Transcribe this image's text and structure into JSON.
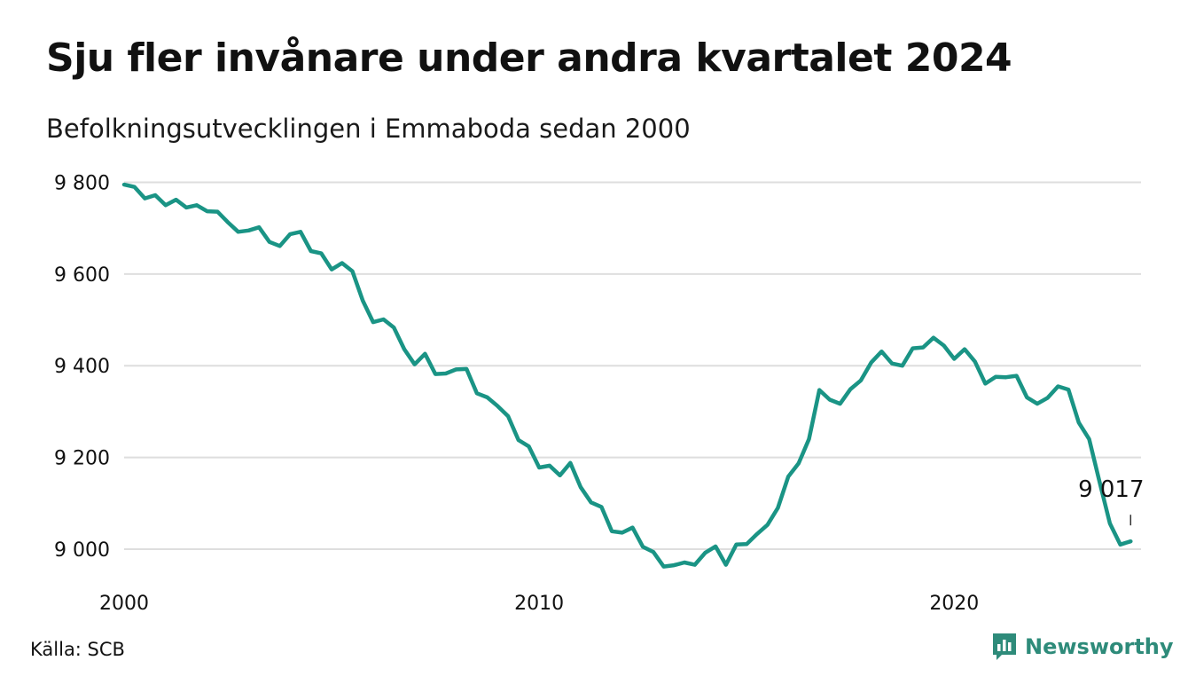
{
  "header": {
    "title": "Sju fler invånare under andra kvartalet 2024",
    "subtitle": "Befolkningsutvecklingen i Emmaboda sedan 2000"
  },
  "footer": {
    "source": "Källa: SCB",
    "brand": "Newsworthy"
  },
  "colors": {
    "line": "#1a9485",
    "grid": "#dedede",
    "brand": "#2e8b7a"
  },
  "chart_data": {
    "type": "line",
    "title": "Sju fler invånare under andra kvartalet 2024",
    "subtitle": "Befolkningsutvecklingen i Emmaboda sedan 2000",
    "xlabel": "",
    "ylabel": "",
    "xlim": [
      2000,
      2024.5
    ],
    "ylim": [
      8940,
      9830
    ],
    "x_ticks": [
      2000,
      2010,
      2020
    ],
    "x_tick_labels": [
      "2000",
      "2010",
      "2020"
    ],
    "y_ticks": [
      9000,
      9200,
      9400,
      9600,
      9800
    ],
    "y_tick_labels": [
      "9 000",
      "9 200",
      "9 400",
      "9 600",
      "9 800"
    ],
    "grid": true,
    "end_label": "9 017",
    "series": [
      {
        "x": [
          2000.0,
          2000.25,
          2000.5,
          2000.75,
          2001.0,
          2001.25,
          2001.5,
          2001.75,
          2002.0,
          2002.25,
          2002.5,
          2002.75,
          2003.0,
          2003.25,
          2003.5,
          2003.75,
          2004.0,
          2004.25,
          2004.5,
          2004.75,
          2005.0,
          2005.25,
          2005.5,
          2005.75,
          2006.0,
          2006.25,
          2006.5,
          2006.75,
          2007.0,
          2007.25,
          2007.5,
          2007.75,
          2008.0,
          2008.25,
          2008.5,
          2008.75,
          2009.0,
          2009.25,
          2009.5,
          2009.75,
          2010.0,
          2010.25,
          2010.5,
          2010.75,
          2011.0,
          2011.25,
          2011.5,
          2011.75,
          2012.0,
          2012.25,
          2012.5,
          2012.75,
          2013.0,
          2013.25,
          2013.5,
          2013.75,
          2014.0,
          2014.25,
          2014.5,
          2014.75,
          2015.0,
          2015.25,
          2015.5,
          2015.75,
          2016.0,
          2016.25,
          2016.5,
          2016.75,
          2017.0,
          2017.25,
          2017.5,
          2017.75,
          2018.0,
          2018.25,
          2018.5,
          2018.75,
          2019.0,
          2019.25,
          2019.5,
          2019.75,
          2020.0,
          2020.25,
          2020.5,
          2020.75,
          2021.0,
          2021.25,
          2021.5,
          2021.75,
          2022.0,
          2022.25,
          2022.5,
          2022.75,
          2023.0,
          2023.25,
          2023.5,
          2023.75,
          2024.0,
          2024.25
        ],
        "values": [
          9795,
          9790,
          9765,
          9772,
          9750,
          9762,
          9745,
          9750,
          9737,
          9736,
          9713,
          9692,
          9695,
          9702,
          9670,
          9661,
          9687,
          9692,
          9650,
          9645,
          9610,
          9624,
          9606,
          9542,
          9495,
          9501,
          9483,
          9436,
          9403,
          9426,
          9382,
          9383,
          9392,
          9393,
          9340,
          9331,
          9312,
          9290,
          9238,
          9224,
          9178,
          9182,
          9161,
          9188,
          9135,
          9102,
          9092,
          9039,
          9036,
          9047,
          9005,
          8994,
          8962,
          8965,
          8971,
          8966,
          8992,
          9006,
          8966,
          9010,
          9011,
          9033,
          9053,
          9090,
          9158,
          9187,
          9240,
          9347,
          9326,
          9317,
          9349,
          9368,
          9407,
          9431,
          9405,
          9400,
          9438,
          9440,
          9461,
          9444,
          9415,
          9436,
          9409,
          9361,
          9376,
          9375,
          9378,
          9331,
          9317,
          9330,
          9355,
          9348,
          9276,
          9240,
          9147,
          9056,
          9010,
          9017
        ]
      }
    ]
  }
}
